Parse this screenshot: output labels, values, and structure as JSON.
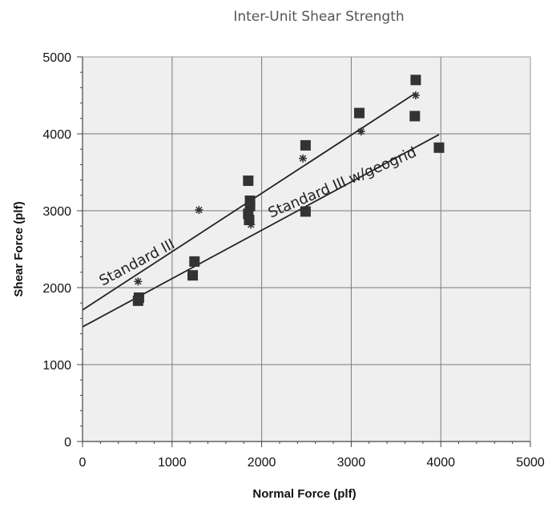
{
  "chart_data": {
    "type": "scatter",
    "title": "Inter-Unit Shear Strength",
    "xlabel": "Normal Force (plf)",
    "ylabel": "Shear Force (plf)",
    "xlim": [
      0,
      5000
    ],
    "ylim": [
      0,
      5000
    ],
    "xticks": [
      "0",
      "1000",
      "2000",
      "3000",
      "4000",
      "5000"
    ],
    "yticks": [
      "0",
      "1000",
      "2000",
      "3000",
      "4000",
      "5000"
    ],
    "grid": true,
    "background": "#efefef",
    "series": [
      {
        "marker": "square",
        "color": "#333333",
        "points": [
          [
            620,
            1830
          ],
          [
            630,
            1870
          ],
          [
            1230,
            2160
          ],
          [
            1250,
            2340
          ],
          [
            1850,
            2960
          ],
          [
            1850,
            3390
          ],
          [
            1860,
            2880
          ],
          [
            1870,
            3130
          ],
          [
            1870,
            3060
          ],
          [
            2490,
            2990
          ],
          [
            2490,
            3850
          ],
          [
            3090,
            4270
          ],
          [
            3710,
            4230
          ],
          [
            3720,
            4700
          ],
          [
            3980,
            3820
          ]
        ]
      },
      {
        "marker": "asterisk",
        "color": "#333333",
        "points": [
          [
            620,
            2080
          ],
          [
            1300,
            3010
          ],
          [
            1880,
            2820
          ],
          [
            2460,
            3680
          ],
          [
            3110,
            4030
          ],
          [
            3720,
            4500
          ]
        ]
      }
    ],
    "lines": [
      {
        "label": "Standard III",
        "x": [
          0,
          3720
        ],
        "y": [
          1710,
          4530
        ]
      },
      {
        "label": "Standard III w/geogrid",
        "x": [
          0,
          3980
        ],
        "y": [
          1490,
          3990
        ]
      }
    ]
  }
}
